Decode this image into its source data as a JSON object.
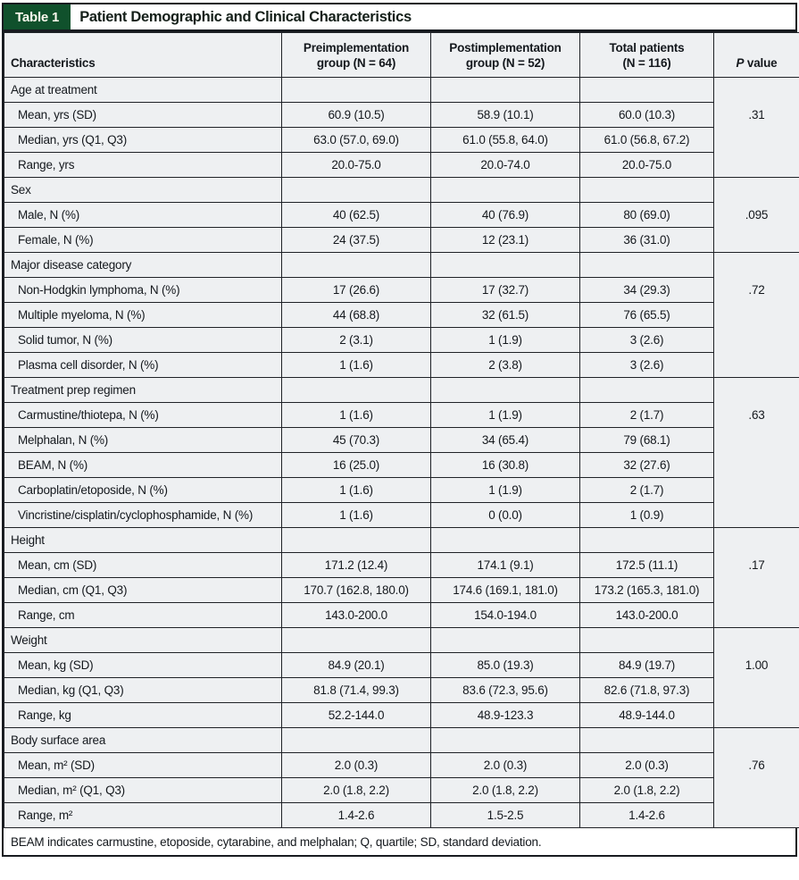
{
  "page": {
    "label": "Table 1",
    "title": "Patient Demographic and Clinical Characteristics",
    "footnote": "BEAM indicates carmustine, etoposide, cytarabine, and melphalan; Q, quartile; SD, standard deviation."
  },
  "colors": {
    "accent_green": "#10512c",
    "cell_background": "#eef0f2",
    "frame_dark": "#181b20",
    "label_text": "#fcf9ee"
  },
  "table": {
    "columns": [
      {
        "id": "characteristics",
        "lines": [
          "Characteristics"
        ],
        "align": "left"
      },
      {
        "id": "pre-group",
        "lines": [
          "Preimplementation",
          "group (N = 64)"
        ]
      },
      {
        "id": "post-group",
        "lines": [
          "Postimplementation",
          "group (N = 52)"
        ]
      },
      {
        "id": "total-patients",
        "lines": [
          "Total patients",
          "(N = 116)"
        ]
      },
      {
        "id": "p-value",
        "italic_lead": "P",
        "lines": [
          " value"
        ]
      }
    ],
    "sections": [
      {
        "header": "Age at treatment",
        "p_value": ".31",
        "rows": [
          {
            "label": "Mean, yrs (SD)",
            "values": [
              "60.9 (10.5)",
              "58.9 (10.1)",
              "60.0 (10.3)"
            ]
          },
          {
            "label": "Median, yrs (Q1, Q3)",
            "values": [
              "63.0 (57.0, 69.0)",
              "61.0 (55.8, 64.0)",
              "61.0 (56.8, 67.2)"
            ]
          },
          {
            "label": "Range, yrs",
            "values": [
              "20.0-75.0",
              "20.0-74.0",
              "20.0-75.0"
            ]
          }
        ]
      },
      {
        "header": "Sex",
        "p_value": ".095",
        "rows": [
          {
            "label": "Male, N (%)",
            "values": [
              "40 (62.5)",
              "40 (76.9)",
              "80 (69.0)"
            ]
          },
          {
            "label": "Female, N (%)",
            "values": [
              "24 (37.5)",
              "12 (23.1)",
              "36 (31.0)"
            ]
          }
        ]
      },
      {
        "header": "Major disease category",
        "p_value": ".72",
        "rows": [
          {
            "label": "Non-Hodgkin lymphoma, N (%)",
            "values": [
              "17 (26.6)",
              "17 (32.7)",
              "34 (29.3)"
            ]
          },
          {
            "label": "Multiple myeloma, N (%)",
            "values": [
              "44 (68.8)",
              "32 (61.5)",
              "76 (65.5)"
            ]
          },
          {
            "label": "Solid tumor, N (%)",
            "values": [
              "2 (3.1)",
              "1 (1.9)",
              "3 (2.6)"
            ]
          },
          {
            "label": "Plasma cell disorder, N (%)",
            "values": [
              "1 (1.6)",
              "2 (3.8)",
              "3 (2.6)"
            ]
          }
        ]
      },
      {
        "header": "Treatment prep regimen",
        "p_value": ".63",
        "rows": [
          {
            "label": "Carmustine/thiotepa, N (%)",
            "values": [
              "1 (1.6)",
              "1 (1.9)",
              "2 (1.7)"
            ]
          },
          {
            "label": "Melphalan, N (%)",
            "values": [
              "45 (70.3)",
              "34 (65.4)",
              "79 (68.1)"
            ]
          },
          {
            "label": "BEAM, N (%)",
            "values": [
              "16 (25.0)",
              "16 (30.8)",
              "32 (27.6)"
            ]
          },
          {
            "label": "Carboplatin/etoposide, N (%)",
            "values": [
              "1 (1.6)",
              "1 (1.9)",
              "2 (1.7)"
            ]
          },
          {
            "label": "Vincristine/cisplatin/cyclophosphamide, N (%)",
            "values": [
              "1 (1.6)",
              "0 (0.0)",
              "1 (0.9)"
            ]
          }
        ]
      },
      {
        "header": "Height",
        "p_value": ".17",
        "rows": [
          {
            "label": "Mean, cm (SD)",
            "values": [
              "171.2 (12.4)",
              "174.1 (9.1)",
              "172.5 (11.1)"
            ]
          },
          {
            "label": "Median, cm (Q1, Q3)",
            "values": [
              "170.7 (162.8, 180.0)",
              "174.6 (169.1, 181.0)",
              "173.2 (165.3, 181.0)"
            ]
          },
          {
            "label": "Range, cm",
            "values": [
              "143.0-200.0",
              "154.0-194.0",
              "143.0-200.0"
            ]
          }
        ]
      },
      {
        "header": "Weight",
        "p_value": "1.00",
        "rows": [
          {
            "label": "Mean, kg (SD)",
            "values": [
              "84.9 (20.1)",
              "85.0 (19.3)",
              "84.9 (19.7)"
            ]
          },
          {
            "label": "Median, kg (Q1, Q3)",
            "values": [
              "81.8 (71.4, 99.3)",
              "83.6 (72.3, 95.6)",
              "82.6 (71.8, 97.3)"
            ]
          },
          {
            "label": "Range, kg",
            "values": [
              "52.2-144.0",
              "48.9-123.3",
              "48.9-144.0"
            ]
          }
        ]
      },
      {
        "header": "Body surface area",
        "p_value": ".76",
        "rows": [
          {
            "label": "Mean, m² (SD)",
            "values": [
              "2.0 (0.3)",
              "2.0 (0.3)",
              "2.0 (0.3)"
            ]
          },
          {
            "label": "Median, m² (Q1, Q3)",
            "values": [
              "2.0 (1.8, 2.2)",
              "2.0 (1.8, 2.2)",
              "2.0 (1.8, 2.2)"
            ]
          },
          {
            "label": "Range, m²",
            "values": [
              "1.4-2.6",
              "1.5-2.5",
              "1.4-2.6"
            ]
          }
        ]
      }
    ]
  }
}
